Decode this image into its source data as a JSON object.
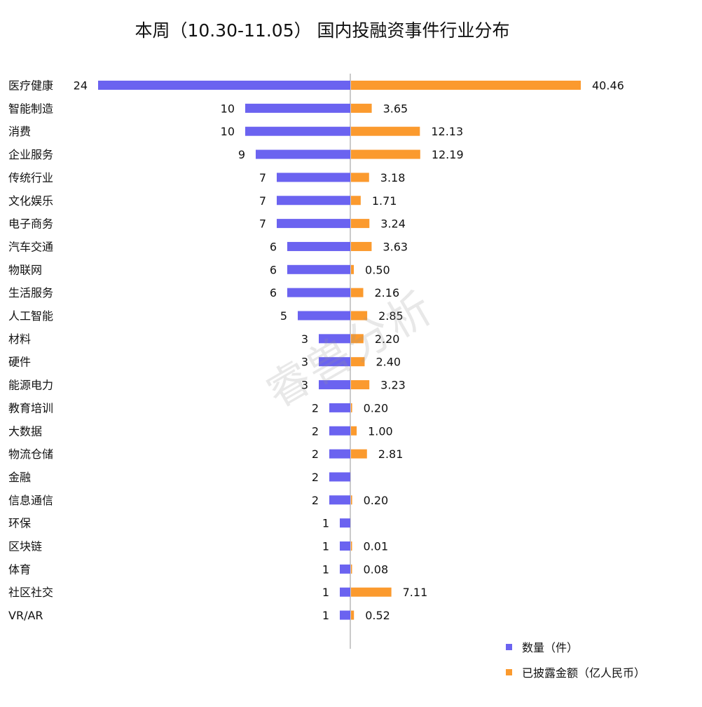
{
  "chart_data": {
    "type": "bar",
    "title": "本周（10.30-11.05） 国内投融资事件行业分布",
    "categories": [
      "医疗健康",
      "智能制造",
      "消费",
      "企业服务",
      "传统行业",
      "文化娱乐",
      "电子商务",
      "汽车交通",
      "物联网",
      "生活服务",
      "人工智能",
      "材料",
      "硬件",
      "能源电力",
      "教育培训",
      "大数据",
      "物流仓储",
      "金融",
      "信息通信",
      "环保",
      "区块链",
      "体育",
      "社区社交",
      "VR/AR"
    ],
    "series": [
      {
        "name": "数量（件）",
        "color": "#6b63f0",
        "direction": "left",
        "values": [
          24,
          10,
          10,
          9,
          7,
          7,
          7,
          6,
          6,
          6,
          5,
          3,
          3,
          3,
          2,
          2,
          2,
          2,
          2,
          1,
          1,
          1,
          1,
          1
        ],
        "labels": [
          "24",
          "10",
          "10",
          "9",
          "7",
          "7",
          "7",
          "6",
          "6",
          "6",
          "5",
          "3",
          "3",
          "3",
          "2",
          "2",
          "2",
          "2",
          "2",
          "1",
          "1",
          "1",
          "1",
          "1"
        ]
      },
      {
        "name": "已披露金额（亿人民币）",
        "color": "#fb9a2e",
        "direction": "right",
        "values": [
          40.46,
          3.65,
          12.13,
          12.19,
          3.18,
          1.71,
          3.24,
          3.63,
          0.5,
          2.16,
          2.85,
          2.2,
          2.4,
          3.23,
          0.2,
          1.0,
          2.81,
          null,
          0.2,
          null,
          0.01,
          0.08,
          7.11,
          0.52
        ],
        "labels": [
          "40.46",
          "3.65",
          "12.13",
          "12.19",
          "3.18",
          "1.71",
          "3.24",
          "3.63",
          "0.50",
          "2.16",
          "2.85",
          "2.20",
          "2.40",
          "3.23",
          "0.20",
          "1.00",
          "2.81",
          "",
          "0.20",
          "",
          "0.01",
          "0.08",
          "7.11",
          "0.52"
        ]
      }
    ],
    "legend_position": "bottom-right",
    "grid": false
  },
  "watermark": "睿兽分析"
}
